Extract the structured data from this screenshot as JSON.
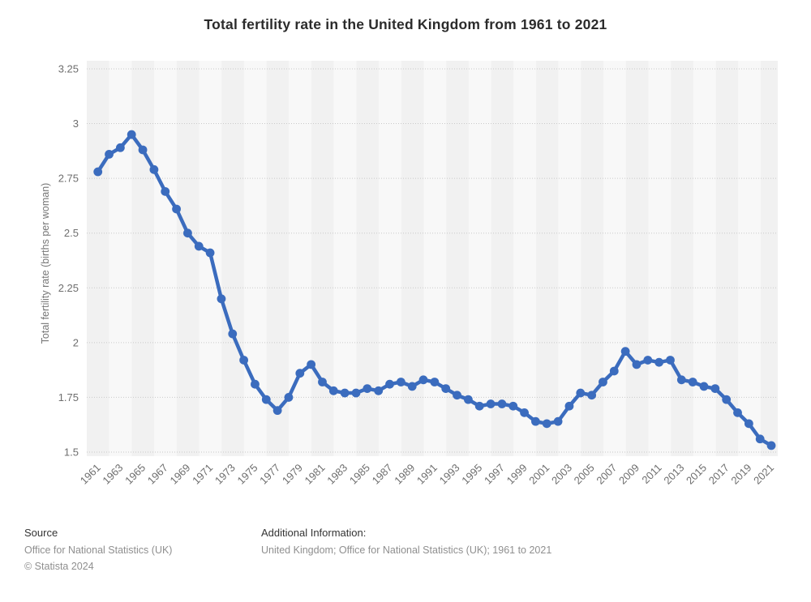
{
  "accent_color": "#3b6cbe",
  "chart_data": {
    "type": "line",
    "title": "Total fertility rate in the United Kingdom from 1961 to 2021",
    "xlabel": "",
    "ylabel": "Total fertility rate (births per woman)",
    "legend": "none",
    "grid": "horizontal-dotted",
    "plot_background": "alternating vertical stripes",
    "stripe_colors": [
      "#f1f1f1",
      "#f8f8f8"
    ],
    "gridline_color": "#c9c9c9",
    "tick_text_color": "#6e6e6e",
    "line_color": "#3b6cbe",
    "ylim": [
      1.5,
      3.25
    ],
    "yticks": [
      {
        "v": 3.25,
        "label": "3.25"
      },
      {
        "v": 3.0,
        "label": "3"
      },
      {
        "v": 2.75,
        "label": "2.75"
      },
      {
        "v": 2.5,
        "label": "2.5"
      },
      {
        "v": 2.25,
        "label": "2.25"
      },
      {
        "v": 2.0,
        "label": "2"
      },
      {
        "v": 1.75,
        "label": "1.75"
      },
      {
        "v": 1.5,
        "label": "1.5"
      }
    ],
    "x_tick_years_labeled": "odd years 1961–2021, rotated 45°",
    "x": [
      1961,
      1962,
      1963,
      1964,
      1965,
      1966,
      1967,
      1968,
      1969,
      1970,
      1971,
      1972,
      1973,
      1974,
      1975,
      1976,
      1977,
      1978,
      1979,
      1980,
      1981,
      1982,
      1983,
      1984,
      1985,
      1986,
      1987,
      1988,
      1989,
      1990,
      1991,
      1992,
      1993,
      1994,
      1995,
      1996,
      1997,
      1998,
      1999,
      2000,
      2001,
      2002,
      2003,
      2004,
      2005,
      2006,
      2007,
      2008,
      2009,
      2010,
      2011,
      2012,
      2013,
      2014,
      2015,
      2016,
      2017,
      2018,
      2019,
      2020,
      2021
    ],
    "values": [
      2.78,
      2.86,
      2.89,
      2.95,
      2.88,
      2.79,
      2.69,
      2.61,
      2.5,
      2.44,
      2.41,
      2.2,
      2.04,
      1.92,
      1.81,
      1.74,
      1.69,
      1.75,
      1.86,
      1.9,
      1.82,
      1.78,
      1.77,
      1.77,
      1.79,
      1.78,
      1.81,
      1.82,
      1.8,
      1.83,
      1.82,
      1.79,
      1.76,
      1.74,
      1.71,
      1.72,
      1.72,
      1.71,
      1.68,
      1.64,
      1.63,
      1.64,
      1.71,
      1.77,
      1.76,
      1.82,
      1.87,
      1.96,
      1.9,
      1.92,
      1.91,
      1.92,
      1.83,
      1.82,
      1.8,
      1.79,
      1.74,
      1.68,
      1.63,
      1.56,
      1.53
    ]
  },
  "footer": {
    "source_label": "Source",
    "source_value": "Office for National Statistics (UK)",
    "copyright": "© Statista 2024",
    "additional_label": "Additional Information:",
    "additional_value": "United Kingdom; Office for National Statistics (UK); 1961 to 2021"
  }
}
